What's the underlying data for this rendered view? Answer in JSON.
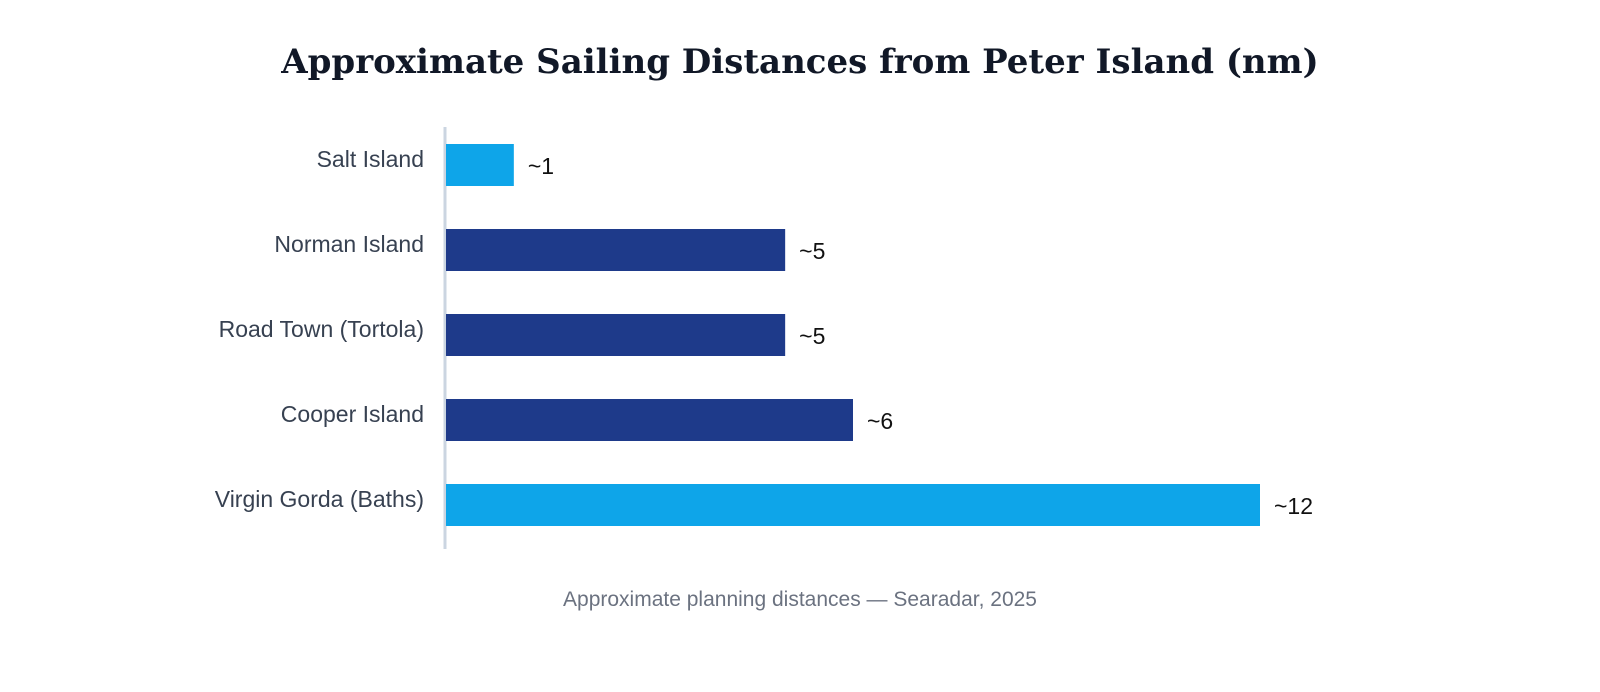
{
  "chart_data": {
    "type": "bar",
    "orientation": "horizontal",
    "title": "Approximate Sailing Distances from Peter Island (nm)",
    "categories": [
      "Salt Island",
      "Norman Island",
      "Road Town (Tortola)",
      "Cooper Island",
      "Virgin Gorda (Baths)"
    ],
    "values": [
      1,
      5,
      5,
      6,
      12
    ],
    "value_labels": [
      "~1",
      "~5",
      "~5",
      "~6",
      "~12"
    ],
    "highlighted": [
      true,
      false,
      false,
      false,
      true
    ],
    "colors": {
      "highlight": "#0ea5e9",
      "default": "#1e3a8a",
      "axis": "#cbd5e1"
    },
    "xlim": [
      0,
      12
    ],
    "grid": false,
    "legend": "none",
    "xlabel": "",
    "ylabel": ""
  },
  "footnote": "Approximate planning distances — Searadar, 2025"
}
